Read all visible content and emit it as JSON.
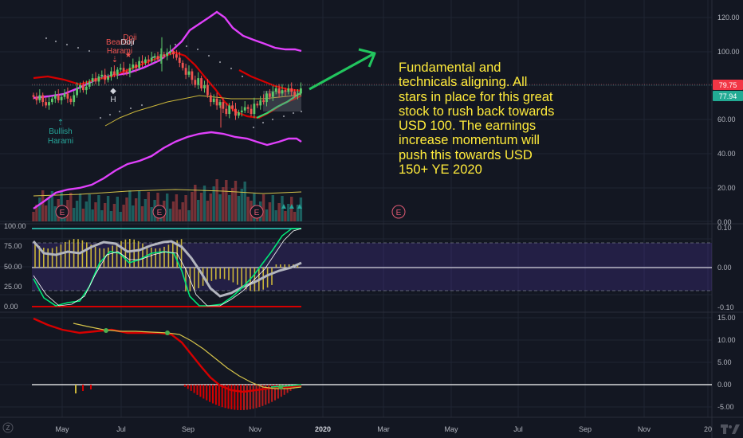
{
  "colors": {
    "background": "#131722",
    "bull": "#26a69a",
    "bull_candle": "#5cc96b",
    "bear": "#ef5350",
    "magenta": "#e040fb",
    "red_line": "#d50000",
    "yellow": "#ffeb3b",
    "annotation": "#ffeb3b",
    "grid": "#1f2433",
    "price_tag_red": "#f23645",
    "price_tag_green": "#22ab94"
  },
  "annotation": {
    "lines": [
      "Fundamental and",
      "technicals aligning. All",
      "stars in place for this great",
      "stock to rush back towards",
      "USD 100. The earnings",
      "increase momentum will",
      "push this towards USD",
      "150+ YE 2020"
    ]
  },
  "time_axis": {
    "labels": [
      "May",
      "Jul",
      "Sep",
      "Nov",
      "2020",
      "Mar",
      "May",
      "Jul",
      "Sep",
      "Nov",
      "20"
    ],
    "bold": [
      "2020"
    ]
  },
  "price_axis": {
    "labels": [
      "120.00",
      "100.00",
      "80.00",
      "60.00",
      "40.00",
      "20.00",
      "0.00"
    ],
    "current_price": "79.75",
    "second_price": "77.94"
  },
  "stoch_axis_left": {
    "labels": [
      "100.00",
      "75.00",
      "50.00",
      "25.00",
      "0.00"
    ]
  },
  "stoch_axis_right": {
    "labels": [
      "0.10",
      "0.00",
      "-0.10"
    ]
  },
  "macd_axis": {
    "labels": [
      "15.00",
      "10.00",
      "5.00",
      "0.00",
      "-5.00"
    ]
  },
  "pattern_labels": {
    "doji": "Doji",
    "bearish_harami_a": "Bearish",
    "bearish_harami_b": "Harami",
    "bearish_doji_star": "Doji",
    "bullish_harami_a": "Bullish",
    "bullish_harami_b": "Harami",
    "h_marker": "H"
  },
  "earnings_marker": "E",
  "icons": {
    "goto_realtime": "chevron-right-icon",
    "tv_logo": "tradingview-logo-icon",
    "timezone": "z-icon"
  }
}
